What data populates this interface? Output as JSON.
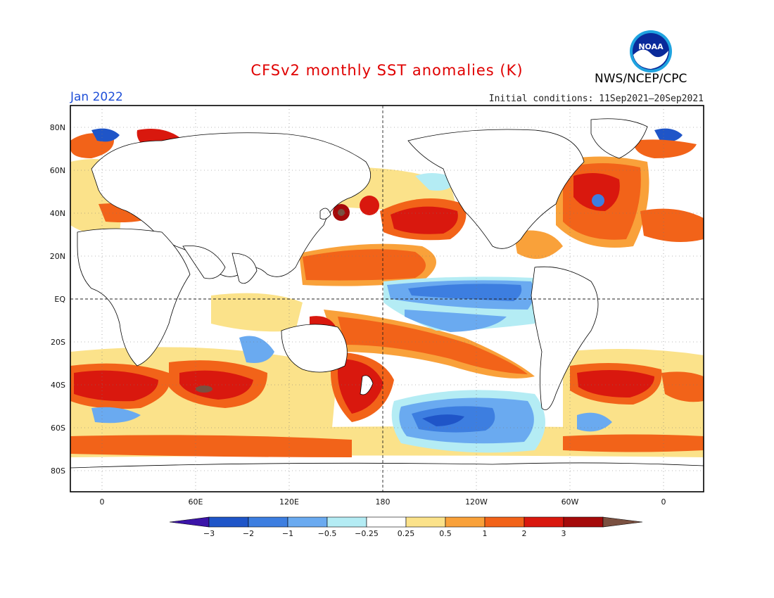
{
  "header": {
    "title": "CFSv2 monthly SST anomalies (K)",
    "month": "Jan 2022",
    "initial_conditions": "Initial conditions: 11Sep2021–20Sep2021",
    "agency": "NWS/NCEP/CPC",
    "logo_text": "NOAA"
  },
  "map": {
    "lat_labels": [
      "80N",
      "60N",
      "40N",
      "20N",
      "EQ",
      "20S",
      "40S",
      "60S",
      "80S"
    ],
    "lon_labels": [
      "0",
      "60E",
      "120E",
      "180",
      "120W",
      "60W",
      "0"
    ]
  },
  "colorbar": {
    "colors": [
      "#3b14a8",
      "#1f55c8",
      "#3d7ee0",
      "#6aaaf0",
      "#b4ecf4",
      "#ffffff",
      "#fbe28a",
      "#f9a13a",
      "#f26319",
      "#d9180e",
      "#a50a0a",
      "#7a5040"
    ],
    "labels": [
      "−3",
      "−2",
      "−1",
      "−0.5",
      "−0.25",
      "0.25",
      "0.5",
      "1",
      "2",
      "3"
    ]
  }
}
